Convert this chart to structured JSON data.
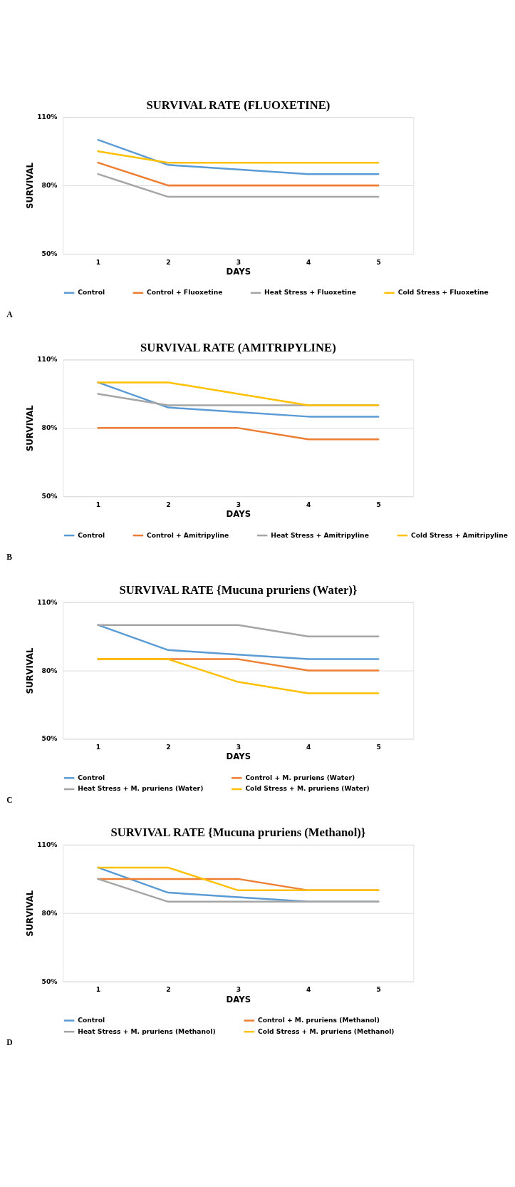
{
  "chart_data": [
    {
      "type": "line",
      "title": "SURVIVAL RATE (FLUOXETINE)",
      "xlabel": "DAYS",
      "ylabel": "SURVIVAL",
      "categories": [
        "1",
        "2",
        "3",
        "4",
        "5"
      ],
      "ylim": [
        50,
        110
      ],
      "yticks": [
        {
          "value": 50,
          "label": "50%"
        },
        {
          "value": 80,
          "label": "80%"
        },
        {
          "value": 110,
          "label": "110%"
        }
      ],
      "grid": "y",
      "legend": "bottom",
      "marker": "none",
      "line_style": "solid",
      "annotations": [
        "A"
      ],
      "series": [
        {
          "name": "Control",
          "color": "#5b9bd5",
          "values": [
            100,
            89,
            87,
            85,
            85
          ]
        },
        {
          "name": "Control + Fluoxetine",
          "color": "#ed7d31",
          "values": [
            90,
            80,
            80,
            80,
            80
          ]
        },
        {
          "name": "Heat Stress + Fluoxetine",
          "color": "#a5a5a5",
          "values": [
            85,
            75,
            75,
            75,
            75
          ]
        },
        {
          "name": "Cold Stress + Fluoxetine",
          "color": "#ffc000",
          "values": [
            95,
            90,
            90,
            90,
            90
          ]
        }
      ]
    },
    {
      "type": "line",
      "title": "SURVIVAL RATE (AMITRIPYLINE)",
      "xlabel": "DAYS",
      "ylabel": "SURVIVAL",
      "categories": [
        "1",
        "2",
        "3",
        "4",
        "5"
      ],
      "ylim": [
        50,
        110
      ],
      "yticks": [
        {
          "value": 50,
          "label": "50%"
        },
        {
          "value": 80,
          "label": "80%"
        },
        {
          "value": 110,
          "label": "110%"
        }
      ],
      "grid": "y",
      "legend": "bottom",
      "marker": "none",
      "line_style": "solid",
      "annotations": [
        "B"
      ],
      "series": [
        {
          "name": "Control",
          "color": "#5b9bd5",
          "values": [
            100,
            89,
            87,
            85,
            85
          ]
        },
        {
          "name": "Control + Amitripyline",
          "color": "#ed7d31",
          "values": [
            80,
            80,
            80,
            75,
            75
          ]
        },
        {
          "name": "Heat Stress + Amitripyline",
          "color": "#a5a5a5",
          "values": [
            95,
            90,
            90,
            90,
            90
          ]
        },
        {
          "name": "Cold Stress + Amitripyline",
          "color": "#ffc000",
          "values": [
            100,
            100,
            95,
            90,
            90
          ]
        }
      ]
    },
    {
      "type": "line",
      "title": "SURVIVAL RATE {Mucuna pruriens (Water)}",
      "xlabel": "DAYS",
      "ylabel": "SURVIVAL",
      "categories": [
        "1",
        "2",
        "3",
        "4",
        "5"
      ],
      "ylim": [
        50,
        110
      ],
      "yticks": [
        {
          "value": 50,
          "label": "50%"
        },
        {
          "value": 80,
          "label": "80%"
        },
        {
          "value": 110,
          "label": "110%"
        }
      ],
      "grid": "y",
      "legend": "bottom",
      "marker": "none",
      "line_style": "solid",
      "annotations": [
        "C"
      ],
      "series": [
        {
          "name": "Control",
          "color": "#5b9bd5",
          "values": [
            100,
            89,
            87,
            85,
            85
          ]
        },
        {
          "name": "Control + M. pruriens (Water)",
          "color": "#ed7d31",
          "values": [
            85,
            85,
            85,
            80,
            80
          ]
        },
        {
          "name": "Heat Stress + M. pruriens (Water)",
          "color": "#a5a5a5",
          "values": [
            100,
            100,
            100,
            95,
            95
          ]
        },
        {
          "name": "Cold Stress + M. pruriens (Water)",
          "color": "#ffc000",
          "values": [
            85,
            85,
            75,
            70,
            70
          ]
        }
      ]
    },
    {
      "type": "line",
      "title": "SURVIVAL RATE {Mucuna pruriens (Methanol)}",
      "xlabel": "DAYS",
      "ylabel": "SURVIVAL",
      "categories": [
        "1",
        "2",
        "3",
        "4",
        "5"
      ],
      "ylim": [
        50,
        110
      ],
      "yticks": [
        {
          "value": 50,
          "label": "50%"
        },
        {
          "value": 80,
          "label": "80%"
        },
        {
          "value": 110,
          "label": "110%"
        }
      ],
      "grid": "y",
      "legend": "bottom",
      "marker": "none",
      "line_style": "solid",
      "annotations": [
        "D"
      ],
      "series": [
        {
          "name": "Control",
          "color": "#5b9bd5",
          "values": [
            100,
            89,
            87,
            85,
            85
          ]
        },
        {
          "name": "Control + M. pruriens (Methanol)",
          "color": "#ed7d31",
          "values": [
            95,
            95,
            95,
            90,
            90
          ]
        },
        {
          "name": "Heat Stress + M. pruriens (Methanol)",
          "color": "#a5a5a5",
          "values": [
            95,
            85,
            85,
            85,
            85
          ]
        },
        {
          "name": "Cold Stress + M. pruriens (Methanol)",
          "color": "#ffc000",
          "values": [
            100,
            100,
            90,
            90,
            90
          ]
        }
      ]
    }
  ]
}
